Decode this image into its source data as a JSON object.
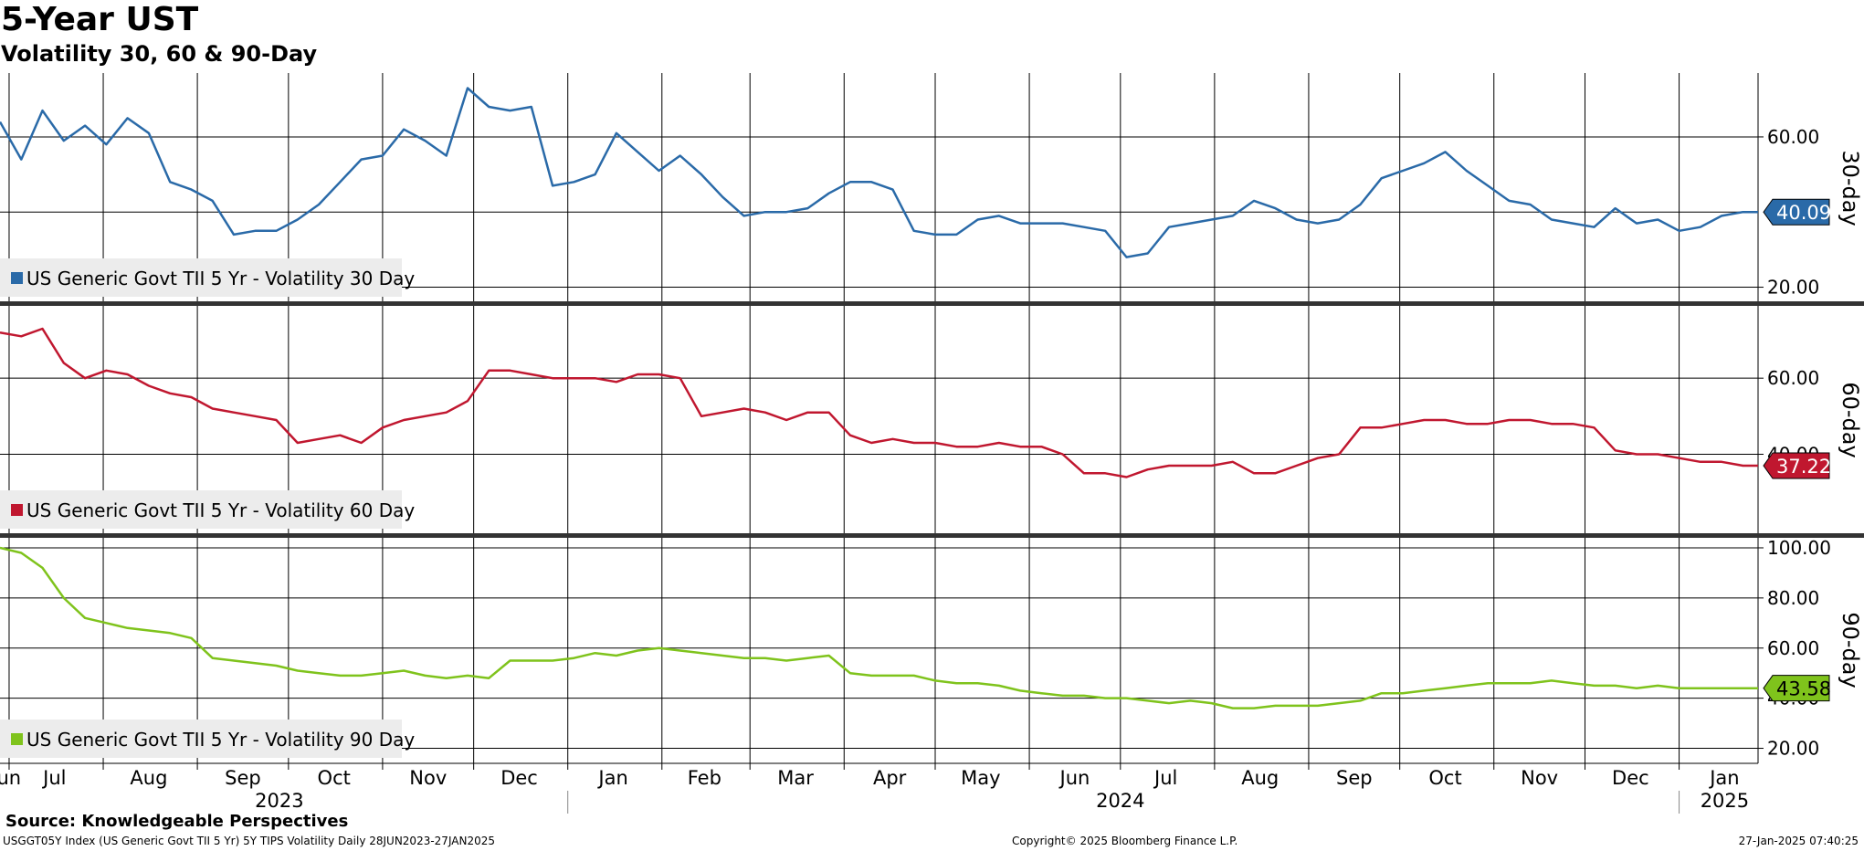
{
  "title": "5-Year UST",
  "subtitle": "Volatility 30, 60 & 90-Day",
  "source": "Source: Knowledgeable Perspectives",
  "footer": {
    "ticker": "USGGT05Y Index (US Generic Govt TII 5 Yr) 5Y TIPS Volatility  Daily 28JUN2023-27JAN2025",
    "copyright": "Copyright© 2025 Bloomberg Finance L.P.",
    "timestamp": "27-Jan-2025 07:40:25"
  },
  "chart_data": [
    {
      "type": "line",
      "panel_label": "30-day",
      "legend": "US Generic Govt TII 5 Yr - Volatility 30 Day",
      "color": "#2a6aa8",
      "last_value_label": "40.09",
      "ylim": [
        16,
        77
      ],
      "yticks": [
        "60.00",
        "20.00"
      ],
      "y_gridlines": [
        20,
        40,
        60
      ],
      "x": [
        "2023-06-28",
        "2023-07-05",
        "2023-07-12",
        "2023-07-19",
        "2023-07-26",
        "2023-08-02",
        "2023-08-09",
        "2023-08-16",
        "2023-08-23",
        "2023-08-30",
        "2023-09-06",
        "2023-09-13",
        "2023-09-20",
        "2023-09-27",
        "2023-10-04",
        "2023-10-11",
        "2023-10-18",
        "2023-10-25",
        "2023-11-01",
        "2023-11-08",
        "2023-11-15",
        "2023-11-22",
        "2023-11-29",
        "2023-12-06",
        "2023-12-13",
        "2023-12-20",
        "2023-12-27",
        "2024-01-03",
        "2024-01-10",
        "2024-01-17",
        "2024-01-24",
        "2024-01-31",
        "2024-02-07",
        "2024-02-14",
        "2024-02-21",
        "2024-02-28",
        "2024-03-06",
        "2024-03-13",
        "2024-03-20",
        "2024-03-27",
        "2024-04-03",
        "2024-04-10",
        "2024-04-17",
        "2024-04-24",
        "2024-05-01",
        "2024-05-08",
        "2024-05-15",
        "2024-05-22",
        "2024-05-29",
        "2024-06-05",
        "2024-06-12",
        "2024-06-19",
        "2024-06-26",
        "2024-07-03",
        "2024-07-10",
        "2024-07-17",
        "2024-07-24",
        "2024-07-31",
        "2024-08-07",
        "2024-08-14",
        "2024-08-21",
        "2024-08-28",
        "2024-09-04",
        "2024-09-11",
        "2024-09-18",
        "2024-09-25",
        "2024-10-02",
        "2024-10-09",
        "2024-10-16",
        "2024-10-23",
        "2024-10-30",
        "2024-11-06",
        "2024-11-13",
        "2024-11-20",
        "2024-11-27",
        "2024-12-04",
        "2024-12-11",
        "2024-12-18",
        "2024-12-25",
        "2025-01-01",
        "2025-01-08",
        "2025-01-15",
        "2025-01-22",
        "2025-01-27"
      ],
      "values": [
        64,
        54,
        67,
        59,
        63,
        58,
        65,
        61,
        48,
        46,
        43,
        34,
        35,
        35,
        38,
        42,
        48,
        54,
        55,
        62,
        59,
        55,
        73,
        68,
        67,
        68,
        47,
        48,
        50,
        61,
        56,
        51,
        55,
        50,
        44,
        39,
        40,
        40,
        41,
        45,
        48,
        48,
        46,
        35,
        34,
        34,
        38,
        39,
        37,
        37,
        37,
        36,
        35,
        28,
        29,
        36,
        37,
        38,
        39,
        43,
        41,
        38,
        37,
        38,
        42,
        49,
        51,
        53,
        56,
        51,
        47,
        43,
        42,
        38,
        37,
        36,
        41,
        37,
        38,
        35,
        36,
        39,
        40,
        40
      ]
    },
    {
      "type": "line",
      "panel_label": "60-day",
      "legend": "US Generic Govt TII 5 Yr - Volatility 60 Day",
      "color": "#c0172f",
      "last_value_label": "37.22",
      "ylim": [
        19,
        79
      ],
      "yticks": [
        "60.00",
        "40.00"
      ],
      "y_gridlines": [
        40,
        60
      ],
      "x": [
        "2023-06-28",
        "2023-07-05",
        "2023-07-12",
        "2023-07-19",
        "2023-07-26",
        "2023-08-02",
        "2023-08-09",
        "2023-08-16",
        "2023-08-23",
        "2023-08-30",
        "2023-09-06",
        "2023-09-13",
        "2023-09-20",
        "2023-09-27",
        "2023-10-04",
        "2023-10-11",
        "2023-10-18",
        "2023-10-25",
        "2023-11-01",
        "2023-11-08",
        "2023-11-15",
        "2023-11-22",
        "2023-11-29",
        "2023-12-06",
        "2023-12-13",
        "2023-12-20",
        "2023-12-27",
        "2024-01-03",
        "2024-01-10",
        "2024-01-17",
        "2024-01-24",
        "2024-01-31",
        "2024-02-07",
        "2024-02-14",
        "2024-02-21",
        "2024-02-28",
        "2024-03-06",
        "2024-03-13",
        "2024-03-20",
        "2024-03-27",
        "2024-04-03",
        "2024-04-10",
        "2024-04-17",
        "2024-04-24",
        "2024-05-01",
        "2024-05-08",
        "2024-05-15",
        "2024-05-22",
        "2024-05-29",
        "2024-06-05",
        "2024-06-12",
        "2024-06-19",
        "2024-06-26",
        "2024-07-03",
        "2024-07-10",
        "2024-07-17",
        "2024-07-24",
        "2024-07-31",
        "2024-08-07",
        "2024-08-14",
        "2024-08-21",
        "2024-08-28",
        "2024-09-04",
        "2024-09-11",
        "2024-09-18",
        "2024-09-25",
        "2024-10-02",
        "2024-10-09",
        "2024-10-16",
        "2024-10-23",
        "2024-10-30",
        "2024-11-06",
        "2024-11-13",
        "2024-11-20",
        "2024-11-27",
        "2024-12-04",
        "2024-12-11",
        "2024-12-18",
        "2024-12-25",
        "2025-01-01",
        "2025-01-08",
        "2025-01-15",
        "2025-01-22",
        "2025-01-27"
      ],
      "values": [
        72,
        71,
        73,
        64,
        60,
        62,
        61,
        58,
        56,
        55,
        52,
        51,
        50,
        49,
        43,
        44,
        45,
        43,
        47,
        49,
        50,
        51,
        54,
        62,
        62,
        61,
        60,
        60,
        60,
        59,
        61,
        61,
        60,
        50,
        51,
        52,
        51,
        49,
        51,
        51,
        45,
        43,
        44,
        43,
        43,
        42,
        42,
        43,
        42,
        42,
        40,
        35,
        35,
        34,
        36,
        37,
        37,
        37,
        38,
        35,
        35,
        37,
        39,
        40,
        47,
        47,
        48,
        49,
        49,
        48,
        48,
        49,
        49,
        48,
        48,
        47,
        41,
        40,
        40,
        39,
        38,
        38,
        37,
        37
      ]
    },
    {
      "type": "line",
      "panel_label": "90-day",
      "legend": "US Generic Govt TII 5 Yr - Volatility 90 Day",
      "color": "#7fc31c",
      "last_value_label": "43.58",
      "ylim": [
        14,
        104
      ],
      "yticks": [
        "100.00",
        "80.00",
        "60.00",
        "40.00",
        "20.00"
      ],
      "y_gridlines": [
        20,
        40,
        60,
        80,
        100
      ],
      "x": [
        "2023-06-28",
        "2023-07-05",
        "2023-07-12",
        "2023-07-19",
        "2023-07-26",
        "2023-08-02",
        "2023-08-09",
        "2023-08-16",
        "2023-08-23",
        "2023-08-30",
        "2023-09-06",
        "2023-09-13",
        "2023-09-20",
        "2023-09-27",
        "2023-10-04",
        "2023-10-11",
        "2023-10-18",
        "2023-10-25",
        "2023-11-01",
        "2023-11-08",
        "2023-11-15",
        "2023-11-22",
        "2023-11-29",
        "2023-12-06",
        "2023-12-13",
        "2023-12-20",
        "2023-12-27",
        "2024-01-03",
        "2024-01-10",
        "2024-01-17",
        "2024-01-24",
        "2024-01-31",
        "2024-02-07",
        "2024-02-14",
        "2024-02-21",
        "2024-02-28",
        "2024-03-06",
        "2024-03-13",
        "2024-03-20",
        "2024-03-27",
        "2024-04-03",
        "2024-04-10",
        "2024-04-17",
        "2024-04-24",
        "2024-05-01",
        "2024-05-08",
        "2024-05-15",
        "2024-05-22",
        "2024-05-29",
        "2024-06-05",
        "2024-06-12",
        "2024-06-19",
        "2024-06-26",
        "2024-07-03",
        "2024-07-10",
        "2024-07-17",
        "2024-07-24",
        "2024-07-31",
        "2024-08-07",
        "2024-08-14",
        "2024-08-21",
        "2024-08-28",
        "2024-09-04",
        "2024-09-11",
        "2024-09-18",
        "2024-09-25",
        "2024-10-02",
        "2024-10-09",
        "2024-10-16",
        "2024-10-23",
        "2024-10-30",
        "2024-11-06",
        "2024-11-13",
        "2024-11-20",
        "2024-11-27",
        "2024-12-04",
        "2024-12-11",
        "2024-12-18",
        "2024-12-25",
        "2025-01-01",
        "2025-01-08",
        "2025-01-15",
        "2025-01-22",
        "2025-01-27"
      ],
      "values": [
        100,
        98,
        92,
        80,
        72,
        70,
        68,
        67,
        66,
        64,
        56,
        55,
        54,
        53,
        51,
        50,
        49,
        49,
        50,
        51,
        49,
        48,
        49,
        48,
        55,
        55,
        55,
        56,
        58,
        57,
        59,
        60,
        59,
        58,
        57,
        56,
        56,
        55,
        56,
        57,
        50,
        49,
        49,
        49,
        47,
        46,
        46,
        45,
        43,
        42,
        41,
        41,
        40,
        40,
        39,
        38,
        39,
        38,
        36,
        36,
        37,
        37,
        37,
        38,
        39,
        42,
        42,
        43,
        44,
        45,
        46,
        46,
        46,
        47,
        46,
        45,
        45,
        44,
        45,
        44,
        44,
        44,
        44,
        44
      ]
    }
  ],
  "x_axis": {
    "range": [
      "2023-06-28",
      "2025-01-27"
    ],
    "month_labels": [
      {
        "label": "Jun",
        "date": "2023-06-30"
      },
      {
        "label": "Jul",
        "date": "2023-07-16"
      },
      {
        "label": "Aug",
        "date": "2023-08-16"
      },
      {
        "label": "Sep",
        "date": "2023-09-16"
      },
      {
        "label": "Oct",
        "date": "2023-10-16"
      },
      {
        "label": "Nov",
        "date": "2023-11-16"
      },
      {
        "label": "Dec",
        "date": "2023-12-16"
      },
      {
        "label": "Jan",
        "date": "2024-01-16"
      },
      {
        "label": "Feb",
        "date": "2024-02-15"
      },
      {
        "label": "Mar",
        "date": "2024-03-16"
      },
      {
        "label": "Apr",
        "date": "2024-04-16"
      },
      {
        "label": "May",
        "date": "2024-05-16"
      },
      {
        "label": "Jun",
        "date": "2024-06-16"
      },
      {
        "label": "Jul",
        "date": "2024-07-16"
      },
      {
        "label": "Aug",
        "date": "2024-08-16"
      },
      {
        "label": "Sep",
        "date": "2024-09-16"
      },
      {
        "label": "Oct",
        "date": "2024-10-16"
      },
      {
        "label": "Nov",
        "date": "2024-11-16"
      },
      {
        "label": "Dec",
        "date": "2024-12-16"
      },
      {
        "label": "Jan",
        "date": "2025-01-16"
      }
    ],
    "month_gridlines": [
      "2023-07-01",
      "2023-08-01",
      "2023-09-01",
      "2023-10-01",
      "2023-11-01",
      "2023-12-01",
      "2024-01-01",
      "2024-02-01",
      "2024-03-01",
      "2024-04-01",
      "2024-05-01",
      "2024-06-01",
      "2024-07-01",
      "2024-08-01",
      "2024-09-01",
      "2024-10-01",
      "2024-11-01",
      "2024-12-01",
      "2025-01-01"
    ],
    "year_labels": [
      {
        "label": "2023",
        "date": "2023-09-28"
      },
      {
        "label": "2024",
        "date": "2024-07-01"
      },
      {
        "label": "2025",
        "date": "2025-01-16"
      }
    ],
    "year_dividers": [
      "2024-01-01",
      "2025-01-01"
    ]
  }
}
